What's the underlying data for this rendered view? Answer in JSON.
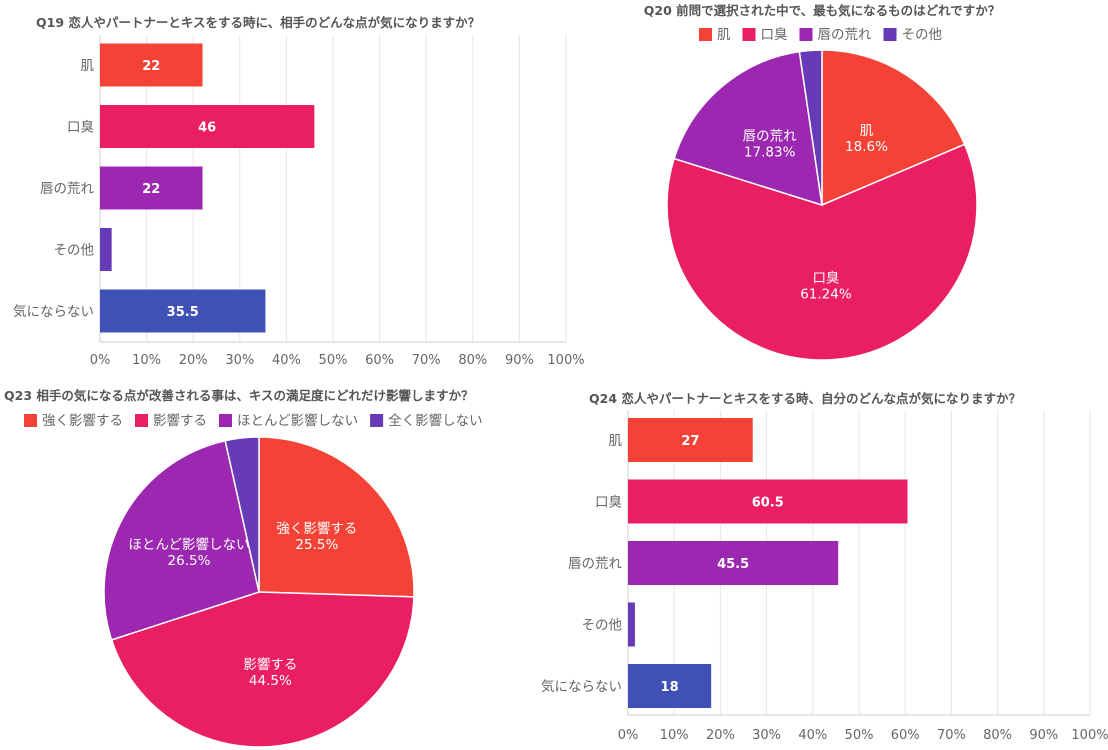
{
  "colors": {
    "orange": "#f44336",
    "pink": "#e91e63",
    "purple": "#9c27b0",
    "violet": "#673ab7",
    "indigo": "#3f51b5",
    "title": "#555555",
    "label": "#666666",
    "grid": "#e6e6e6",
    "axis": "#cccccc"
  },
  "chart_data": [
    {
      "id": "q19",
      "type": "bar",
      "orientation": "horizontal",
      "title": "Q19 恋人やパートナーとキスをする時に、相手のどんな点が気になりますか？",
      "categories": [
        "肌",
        "口臭",
        "唇の荒れ",
        "その他",
        "気にならない"
      ],
      "values": [
        22,
        46,
        22,
        2.5,
        35.5
      ],
      "value_labels": [
        "22",
        "46",
        "22",
        "",
        "35.5"
      ],
      "bar_colors": [
        "#f44336",
        "#e91e63",
        "#9c27b0",
        "#673ab7",
        "#3f51b5"
      ],
      "xlim": [
        0,
        100
      ],
      "ticks": [
        "0%",
        "10%",
        "20%",
        "30%",
        "40%",
        "50%",
        "60%",
        "70%",
        "80%",
        "90%",
        "100%"
      ],
      "grid": true
    },
    {
      "id": "q20",
      "type": "pie",
      "title": "Q20 前問で選択された中で、最も気になるものはどれですか？",
      "legend_position": "top",
      "labels": [
        "肌",
        "口臭",
        "唇の荒れ",
        "その他"
      ],
      "values": [
        18.6,
        61.24,
        17.83,
        2.33
      ],
      "pct_labels": [
        "18.6%",
        "61.24%",
        "17.83%",
        ""
      ],
      "slice_colors": [
        "#f44336",
        "#e91e63",
        "#9c27b0",
        "#673ab7"
      ]
    },
    {
      "id": "q23",
      "type": "pie",
      "title": "Q23 相手の気になる点が改善される事は、キスの満足度にどれだけ影響しますか？",
      "legend_position": "top",
      "labels": [
        "強く影響する",
        "影響する",
        "ほとんど影響しない",
        "全く影響しない"
      ],
      "values": [
        25.5,
        44.5,
        26.5,
        3.5
      ],
      "pct_labels": [
        "25.5%",
        "44.5%",
        "26.5%",
        ""
      ],
      "slice_colors": [
        "#f44336",
        "#e91e63",
        "#9c27b0",
        "#673ab7"
      ]
    },
    {
      "id": "q24",
      "type": "bar",
      "orientation": "horizontal",
      "title": "Q24 恋人やパートナーとキスをする時、自分のどんな点が気になりますか？",
      "categories": [
        "肌",
        "口臭",
        "唇の荒れ",
        "その他",
        "気にならない"
      ],
      "values": [
        27,
        60.5,
        45.5,
        1.5,
        18
      ],
      "value_labels": [
        "27",
        "60.5",
        "45.5",
        "",
        "18"
      ],
      "bar_colors": [
        "#f44336",
        "#e91e63",
        "#9c27b0",
        "#673ab7",
        "#3f51b5"
      ],
      "xlim": [
        0,
        100
      ],
      "ticks": [
        "0%",
        "10%",
        "20%",
        "30%",
        "40%",
        "50%",
        "60%",
        "70%",
        "80%",
        "90%",
        "100%"
      ],
      "grid": true
    }
  ]
}
